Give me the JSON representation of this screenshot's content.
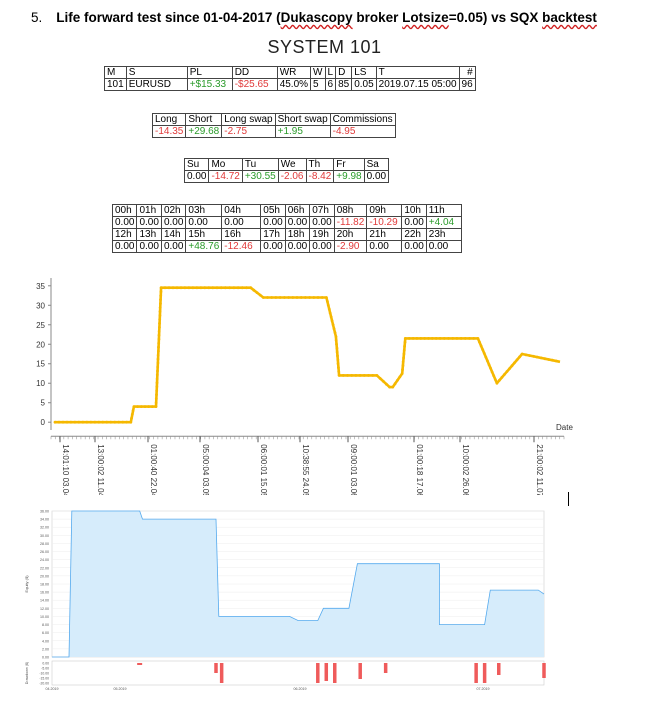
{
  "heading": {
    "number": "5.",
    "pre": "Life forward test since 01-04-2017 (",
    "dukas": "Dukascopy",
    "mid1": " broker ",
    "lotsize": "Lotsize",
    "mid2": "=0.05) vs SQX ",
    "backtest": "backtest"
  },
  "system_title": "SYSTEM 101",
  "summary": {
    "headers": [
      "M",
      "S",
      "PL",
      "DD",
      "WR",
      "W",
      "L",
      "D",
      "LS",
      "T",
      "#"
    ],
    "row": [
      "101",
      "EURUSD",
      "+$15.33",
      "-$25.65",
      "45.0%",
      "5",
      "6",
      "85",
      "0.05",
      "2019.07.15 05:00",
      "96"
    ]
  },
  "longshort": {
    "headers": [
      "Long",
      "Short",
      "Long swap",
      "Short swap",
      "Commissions"
    ],
    "row": [
      "-14.35",
      "+29.68",
      "-2.75",
      "+1.95",
      "-4.95"
    ]
  },
  "days": {
    "headers": [
      "Su",
      "Mo",
      "Tu",
      "We",
      "Th",
      "Fr",
      "Sa"
    ],
    "row": [
      "0.00",
      "-14.72",
      "+30.55",
      "-2.06",
      "-8.42",
      "+9.98",
      "0.00"
    ]
  },
  "hours": {
    "h1": [
      "00h",
      "01h",
      "02h",
      "03h",
      "04h",
      "05h",
      "06h",
      "07h",
      "08h",
      "09h",
      "10h",
      "11h"
    ],
    "v1": [
      "0.00",
      "0.00",
      "0.00",
      "0.00",
      "0.00",
      "0.00",
      "0.00",
      "0.00",
      "-11.82",
      "-10.29",
      "0.00",
      "+4.04"
    ],
    "h2": [
      "12h",
      "13h",
      "14h",
      "15h",
      "16h",
      "17h",
      "18h",
      "19h",
      "20h",
      "21h",
      "22h",
      "23h"
    ],
    "v2": [
      "0.00",
      "0.00",
      "0.00",
      "+48.76",
      "-12.46",
      "0.00",
      "0.00",
      "0.00",
      "-2.90",
      "0.00",
      "0.00",
      "0.00"
    ]
  },
  "colors": {
    "line": "#f5b800",
    "pos": "#2a9b2a",
    "neg": "#e03a3a",
    "area_fill": "#d6ecfb",
    "area_line": "#55aaee",
    "dd_bar": "#ef5b5b"
  },
  "chart_data": [
    {
      "type": "line",
      "title": "",
      "xlabel": "Date",
      "ylabel": "",
      "ylim": [
        -2,
        37
      ],
      "yticks": [
        0,
        5,
        10,
        15,
        20,
        25,
        30,
        35
      ],
      "xtick_labels": [
        "14:01:10 03.04",
        "13:00:02 11.04",
        "01:00:40 22.04",
        "05:00:04 03.05",
        "06:00:01 15.05",
        "10:38:55 24.05",
        "09:00:01 03.06",
        "01:00:18 17.06",
        "10:00:02 26.06",
        "21:00:02 11.07"
      ],
      "x": [
        0,
        1.2,
        1.25,
        1.6,
        1.68,
        2.5,
        3.1,
        3.3,
        3.9,
        4.3,
        4.45,
        4.5,
        5.1,
        5.3,
        5.35,
        5.5,
        5.55,
        6.1,
        6.7,
        7.0,
        7.4,
        8.0
      ],
      "y": [
        0,
        0,
        4,
        4,
        34.5,
        34.5,
        34.5,
        32,
        32,
        32,
        22,
        12,
        12,
        9,
        9,
        12.5,
        21.5,
        21.5,
        21.5,
        10,
        17.5,
        15.5
      ]
    },
    {
      "type": "area",
      "title": "",
      "ylabel": "Equity ($)",
      "ylim": [
        0,
        36
      ],
      "yticks": [
        "0.00",
        "2.00",
        "4.00",
        "6.00",
        "8.00",
        "10.00",
        "12.00",
        "14.00",
        "16.00",
        "18.00",
        "20.00",
        "22.00",
        "24.00",
        "26.00",
        "28.00",
        "30.00",
        "32.00",
        "34.00",
        "36.00"
      ],
      "xtick_labels": [
        "04.2019",
        "05.2019",
        "06.2019",
        "07.2019"
      ],
      "x": [
        0,
        0.06,
        0.07,
        0.31,
        0.32,
        0.58,
        0.59,
        0.84,
        0.87,
        0.94,
        0.96,
        1.05,
        1.08,
        1.32,
        1.37,
        1.37,
        1.53,
        1.55,
        1.62,
        1.64,
        1.72,
        1.74
      ],
      "y": [
        0,
        0,
        36,
        36,
        34,
        34,
        10,
        10,
        9,
        9,
        12,
        12,
        23,
        23,
        23,
        8,
        8,
        16.5,
        16.5,
        16.5,
        16.5,
        15.5
      ]
    },
    {
      "type": "bar",
      "title": "",
      "ylabel": "Drawdown ($)",
      "ytick_labels": [
        "0.00",
        "-5.00",
        "-10.00",
        "-15.00",
        "-20.00"
      ],
      "xtick_labels": [
        "04.2019",
        "05.2019",
        "06.2019",
        "07.2019"
      ],
      "x": [
        0.31,
        0.58,
        0.6,
        0.94,
        0.97,
        1.0,
        1.09,
        1.18,
        1.5,
        1.53,
        1.58,
        1.74
      ],
      "values": [
        -2,
        -10,
        -20,
        -20,
        -18,
        -20,
        -16,
        -10,
        -20,
        -20,
        -12,
        -15
      ]
    }
  ]
}
